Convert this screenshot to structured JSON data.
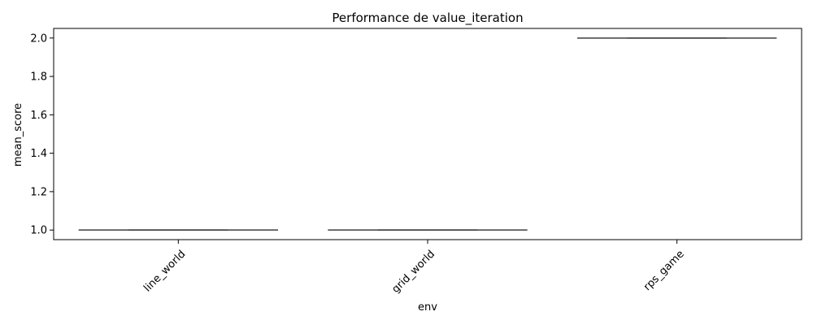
{
  "chart_data": {
    "type": "box",
    "title": "Performance de value_iteration",
    "xlabel": "env",
    "ylabel": "mean_score",
    "categories": [
      "line_world",
      "grid_world",
      "rps_game"
    ],
    "values": [
      1.0,
      1.0,
      2.0
    ],
    "ylim": [
      0.95,
      2.05
    ],
    "yticks": [
      1.0,
      1.2,
      1.4,
      1.6,
      1.8,
      2.0
    ],
    "ytick_labels": [
      "1.0",
      "1.2",
      "1.4",
      "1.6",
      "1.8",
      "2.0"
    ],
    "xtick_rotation": 45,
    "grid": false,
    "colors": {
      "box_line": "#3f3f3f",
      "axis": "#000000"
    }
  }
}
